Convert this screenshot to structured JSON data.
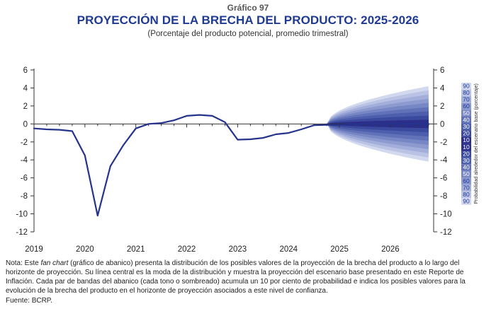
{
  "header": {
    "supertitle": "Gráfico 97",
    "title": "PROYECCIÓN DE LA BRECHA DEL PRODUCTO: 2025-2026",
    "subtitle": "(Porcentaje del producto potencial, promedio trimestral)"
  },
  "chart_data": {
    "type": "line",
    "y_ticks": [
      6,
      4,
      2,
      0,
      -2,
      -4,
      -6,
      -8,
      -10,
      -12
    ],
    "ylim": [
      -12,
      6
    ],
    "year_labels": [
      "2019",
      "2020",
      "2021",
      "2022",
      "2023",
      "2024",
      "2025",
      "2026"
    ],
    "series": [
      {
        "x": [
          2019.0,
          2019.25,
          2019.5,
          2019.75,
          2020.0,
          2020.25,
          2020.5,
          2020.75,
          2021.0,
          2021.25,
          2021.5,
          2021.75,
          2022.0,
          2022.25,
          2022.5,
          2022.75,
          2023.0,
          2023.25,
          2023.5,
          2023.75,
          2024.0,
          2024.25,
          2024.5,
          2024.75,
          2025.0,
          2025.25,
          2025.5,
          2025.75,
          2026.0,
          2026.25,
          2026.5,
          2026.75
        ],
        "values": [
          -0.5,
          -0.6,
          -0.65,
          -0.8,
          -3.5,
          -10.2,
          -4.7,
          -2.4,
          -0.5,
          0.0,
          0.1,
          0.4,
          0.9,
          1.0,
          0.9,
          0.2,
          -1.75,
          -1.7,
          -1.55,
          -1.15,
          -1.0,
          -0.6,
          -0.15,
          -0.1,
          -0.1,
          -0.05,
          0.0,
          0.0,
          0.0,
          0.0,
          0.0,
          0.0
        ]
      }
    ],
    "fan": {
      "start_x": 2024.75,
      "end_x": 2026.75,
      "outer_width_end": 4.2,
      "band_colors": [
        "#2b2f8a",
        "#3b4a9e",
        "#4d5eac",
        "#6272b8",
        "#7786c4",
        "#8d9ad0",
        "#a3afda",
        "#bac3e4",
        "#d2d8ee"
      ]
    },
    "legend": {
      "title": "Probabilidad alrededor del escenario base (porcentaje)",
      "labels": [
        "90",
        "80",
        "70",
        "60",
        "50",
        "40",
        "30",
        "20",
        "10",
        "10",
        "20",
        "30",
        "40",
        "50",
        "60",
        "70",
        "80",
        "90"
      ]
    }
  },
  "note": {
    "prefix": "Nota: Este ",
    "italic": "fan chart",
    "text": " (gráfico de abanico) presenta la distribución de los posibles valores de la proyección de la brecha del producto a lo largo del horizonte de proyección. Su línea central es la moda de la distribución y muestra la proyección del escenario base presentado en este Reporte de Inflación. Cada par de bandas del abanico (cada tono o sombreado) acumula un 10 por ciento de probabilidad e indica los posibles valores para la evolución de la brecha del producto en el horizonte de proyección asociados a este nivel de confianza."
  },
  "source": "Fuente: BCRP."
}
